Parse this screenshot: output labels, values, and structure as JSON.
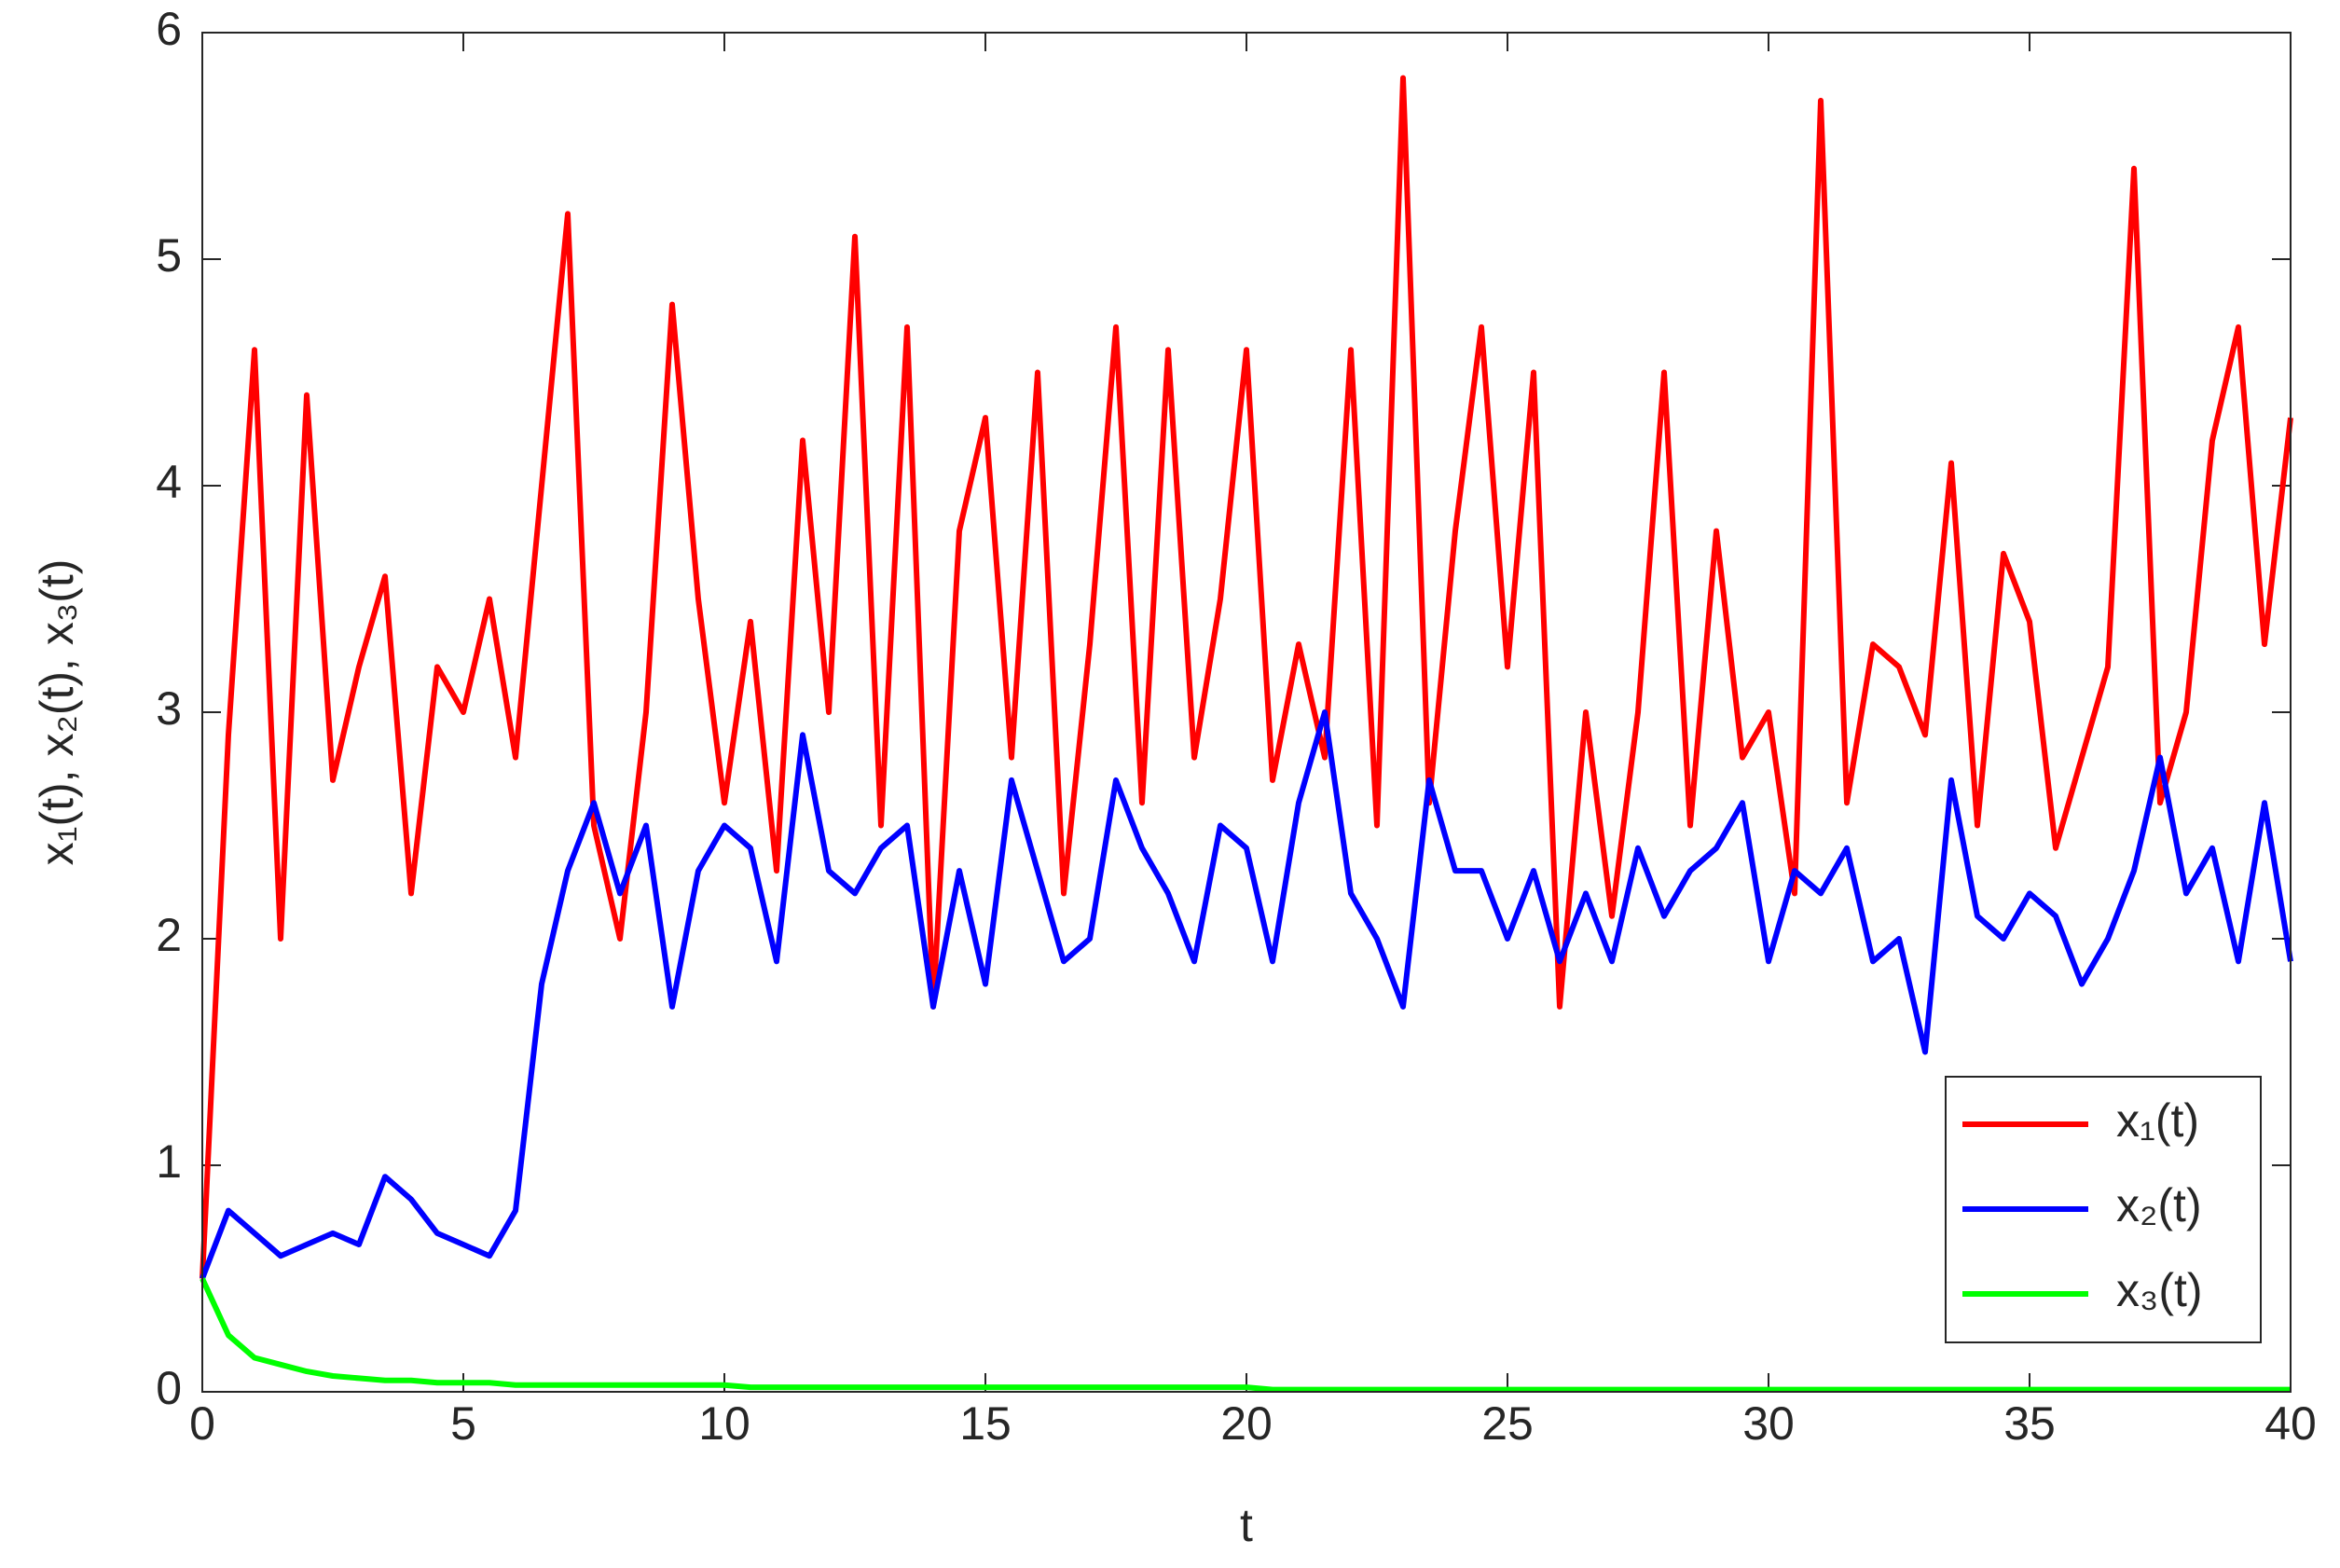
{
  "chart_data": {
    "type": "line",
    "x_label": "t",
    "y_label": "x₁(t), x₂(t), x₃(t)",
    "x": [
      0,
      0.5,
      1,
      1.5,
      2,
      2.5,
      3,
      3.5,
      4,
      4.5,
      5,
      5.5,
      6,
      6.5,
      7,
      7.5,
      8,
      8.5,
      9,
      9.5,
      10,
      10.5,
      11,
      11.5,
      12,
      12.5,
      13,
      13.5,
      14,
      14.5,
      15,
      15.5,
      16,
      16.5,
      17,
      17.5,
      18,
      18.5,
      19,
      19.5,
      20,
      20.5,
      21,
      21.5,
      22,
      22.5,
      23,
      23.5,
      24,
      24.5,
      25,
      25.5,
      26,
      26.5,
      27,
      27.5,
      28,
      28.5,
      29,
      29.5,
      30,
      30.5,
      31,
      31.5,
      32,
      32.5,
      33,
      33.5,
      34,
      34.5,
      35,
      35.5,
      36,
      36.5,
      37,
      37.5,
      38,
      38.5,
      39,
      39.5,
      40
    ],
    "series": [
      {
        "name": "x₁(t)",
        "color": "#ff0000",
        "values": [
          0.5,
          2.9,
          4.6,
          2.0,
          4.4,
          2.7,
          3.2,
          3.6,
          2.2,
          3.2,
          3.0,
          3.5,
          2.8,
          4.0,
          5.2,
          2.5,
          2.0,
          3.0,
          4.8,
          3.5,
          2.6,
          3.4,
          2.3,
          4.2,
          3.0,
          5.1,
          2.5,
          4.7,
          1.7,
          3.8,
          4.3,
          2.8,
          4.5,
          2.2,
          3.3,
          4.7,
          2.6,
          4.6,
          2.8,
          3.5,
          4.6,
          2.7,
          3.3,
          2.8,
          4.6,
          2.5,
          5.8,
          2.6,
          3.8,
          4.7,
          3.2,
          4.5,
          1.7,
          3.0,
          2.1,
          3.0,
          4.5,
          2.5,
          3.8,
          2.8,
          3.0,
          2.2,
          5.7,
          2.6,
          3.3,
          3.2,
          2.9,
          4.1,
          2.5,
          3.7,
          3.4,
          2.4,
          2.8,
          3.2,
          5.4,
          2.6,
          3.0,
          4.2,
          4.7,
          3.3,
          4.3
        ]
      },
      {
        "name": "x₂(t)",
        "color": "#0000ff",
        "values": [
          0.5,
          0.8,
          0.7,
          0.6,
          0.65,
          0.7,
          0.65,
          0.95,
          0.85,
          0.7,
          0.65,
          0.6,
          0.8,
          1.8,
          2.3,
          2.6,
          2.2,
          2.5,
          1.7,
          2.3,
          2.5,
          2.4,
          1.9,
          2.9,
          2.3,
          2.2,
          2.4,
          2.5,
          1.7,
          2.3,
          1.8,
          2.7,
          2.3,
          1.9,
          2.0,
          2.7,
          2.4,
          2.2,
          1.9,
          2.5,
          2.4,
          1.9,
          2.6,
          3.0,
          2.2,
          2.0,
          1.7,
          2.7,
          2.3,
          2.3,
          2.0,
          2.3,
          1.9,
          2.2,
          1.9,
          2.4,
          2.1,
          2.3,
          2.4,
          2.6,
          1.9,
          2.3,
          2.2,
          2.4,
          1.9,
          2.0,
          1.5,
          2.7,
          2.1,
          2.0,
          2.2,
          2.1,
          1.8,
          2.0,
          2.3,
          2.8,
          2.2,
          2.4,
          1.9,
          2.6,
          1.9
        ]
      },
      {
        "name": "x₃(t)",
        "color": "#00ff00",
        "values": [
          0.5,
          0.25,
          0.15,
          0.12,
          0.09,
          0.07,
          0.06,
          0.05,
          0.05,
          0.04,
          0.04,
          0.04,
          0.03,
          0.03,
          0.03,
          0.03,
          0.03,
          0.03,
          0.03,
          0.03,
          0.03,
          0.02,
          0.02,
          0.02,
          0.02,
          0.02,
          0.02,
          0.02,
          0.02,
          0.02,
          0.02,
          0.02,
          0.02,
          0.02,
          0.02,
          0.02,
          0.02,
          0.02,
          0.02,
          0.02,
          0.02,
          0.01,
          0.01,
          0.01,
          0.01,
          0.01,
          0.01,
          0.01,
          0.01,
          0.01,
          0.01,
          0.01,
          0.01,
          0.01,
          0.01,
          0.01,
          0.01,
          0.01,
          0.01,
          0.01,
          0.01,
          0.01,
          0.01,
          0.01,
          0.01,
          0.01,
          0.01,
          0.01,
          0.01,
          0.01,
          0.01,
          0.01,
          0.01,
          0.01,
          0.01,
          0.01,
          0.01,
          0.01,
          0.01,
          0.01,
          0.01
        ]
      }
    ],
    "xlim": [
      0,
      40
    ],
    "xticks": [
      0,
      5,
      10,
      15,
      20,
      25,
      30,
      35,
      40
    ],
    "ylim": [
      0,
      6
    ],
    "yticks": [
      0,
      1,
      2,
      3,
      4,
      5,
      6
    ],
    "grid": false,
    "legend": "lower right"
  }
}
